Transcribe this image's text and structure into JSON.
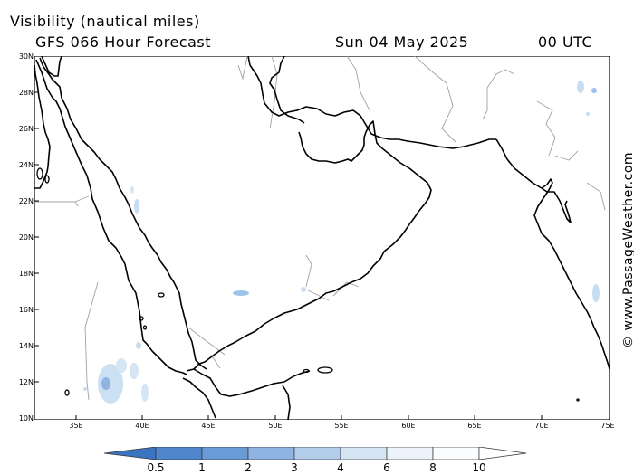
{
  "header": {
    "title": "Visibility (nautical miles)",
    "subtitle": "GFS 066 Hour Forecast",
    "date": "Sun 04 May 2025",
    "time": "00 UTC"
  },
  "credit": "© www.PassageWeather.com",
  "map": {
    "lat_labels": [
      "30N",
      "28N",
      "26N",
      "24N",
      "22N",
      "20N",
      "18N",
      "16N",
      "14N",
      "12N",
      "10N"
    ],
    "lon_labels": [
      "35E",
      "40E",
      "45E",
      "50E",
      "55E",
      "60E",
      "65E",
      "70E",
      "75E"
    ],
    "lat_range": [
      10,
      30
    ],
    "lon_range": [
      32.5,
      75
    ],
    "colors": {
      "coast": "#000000",
      "border": "#a0a0a0",
      "fog_light": "#c6ddf2",
      "fog_mid": "#9cc3ea"
    }
  },
  "legend": {
    "labels": [
      "0.5",
      "1",
      "2",
      "3",
      "4",
      "6",
      "8",
      "10"
    ],
    "colors": [
      "#3b74c0",
      "#4f86cc",
      "#6a9bd7",
      "#8fb4e2",
      "#b3cdeb",
      "#d6e5f4",
      "#edf3fa",
      "#fafcfe",
      "#ffffff"
    ]
  }
}
